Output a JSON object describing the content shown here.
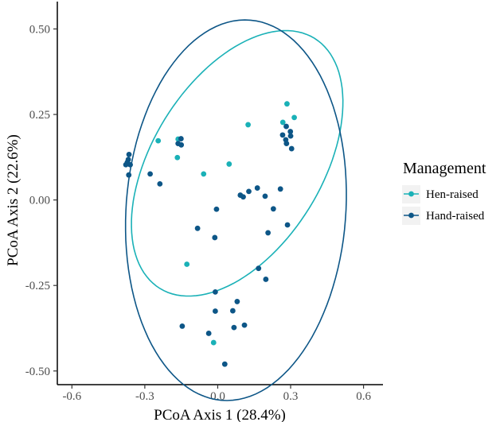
{
  "chart_data": {
    "type": "scatter",
    "xlabel": "PCoA Axis 1 (28.4%)",
    "ylabel": "PCoA Axis 2 (22.6%)",
    "xlim": [
      -0.66,
      0.68
    ],
    "ylim": [
      -0.54,
      0.58
    ],
    "xticks": [
      "-0.6",
      "-0.3",
      "0.0",
      "0.3",
      "0.6"
    ],
    "xtick_values": [
      -0.6,
      -0.3,
      0.0,
      0.3,
      0.6
    ],
    "yticks": [
      "0.50",
      "0.25",
      "0.00",
      "-0.25",
      "-0.50"
    ],
    "ytick_values": [
      0.5,
      0.25,
      0.0,
      -0.25,
      -0.5
    ],
    "grid": false,
    "legend": {
      "title": "Management",
      "placement": "right",
      "entries": [
        "Hen-raised",
        "Hand-raised"
      ]
    },
    "series": [
      {
        "name": "Hen-raised",
        "color": "#1ab1b7",
        "points": [
          [
            -0.245,
            0.173
          ],
          [
            -0.163,
            0.178
          ],
          [
            -0.166,
            0.124
          ],
          [
            -0.058,
            0.076
          ],
          [
            0.047,
            0.105
          ],
          [
            0.125,
            0.22
          ],
          [
            0.268,
            0.227
          ],
          [
            0.285,
            0.281
          ],
          [
            0.315,
            0.241
          ],
          [
            -0.127,
            -0.188
          ],
          [
            -0.017,
            -0.417
          ]
        ],
        "ellipse": {
          "center": [
            0.08,
            0.107
          ],
          "semi_axes": [
            0.5,
            0.3
          ],
          "angle_deg": 38
        }
      },
      {
        "name": "Hand-raised",
        "color": "#0d5687",
        "points": [
          [
            -0.365,
            0.133
          ],
          [
            -0.368,
            0.118
          ],
          [
            -0.372,
            0.11
          ],
          [
            -0.36,
            0.103
          ],
          [
            -0.378,
            0.103
          ],
          [
            -0.366,
            0.073
          ],
          [
            -0.278,
            0.076
          ],
          [
            -0.238,
            0.047
          ],
          [
            -0.163,
            0.165
          ],
          [
            -0.151,
            0.179
          ],
          [
            -0.15,
            0.161
          ],
          [
            0.093,
            0.014
          ],
          [
            0.105,
            0.009
          ],
          [
            0.128,
            0.025
          ],
          [
            0.163,
            0.035
          ],
          [
            0.195,
            0.011
          ],
          [
            0.258,
            0.032
          ],
          [
            0.282,
            0.215
          ],
          [
            0.299,
            0.2
          ],
          [
            0.3,
            0.187
          ],
          [
            0.28,
            0.176
          ],
          [
            0.283,
            0.165
          ],
          [
            0.304,
            0.15
          ],
          [
            0.267,
            0.19
          ],
          [
            -0.005,
            -0.027
          ],
          [
            -0.083,
            -0.083
          ],
          [
            -0.012,
            -0.11
          ],
          [
            0.229,
            -0.026
          ],
          [
            0.207,
            -0.096
          ],
          [
            0.287,
            -0.073
          ],
          [
            0.168,
            -0.2
          ],
          [
            0.198,
            -0.232
          ],
          [
            -0.01,
            -0.269
          ],
          [
            -0.01,
            -0.325
          ],
          [
            0.062,
            -0.324
          ],
          [
            0.08,
            -0.297
          ],
          [
            0.11,
            -0.366
          ],
          [
            0.067,
            -0.373
          ],
          [
            -0.146,
            -0.369
          ],
          [
            -0.037,
            -0.39
          ],
          [
            0.029,
            -0.48
          ]
        ],
        "ellipse": {
          "center": [
            0.075,
            -0.03
          ],
          "semi_axes": [
            0.45,
            0.56
          ],
          "angle_deg": -11
        }
      }
    ]
  }
}
